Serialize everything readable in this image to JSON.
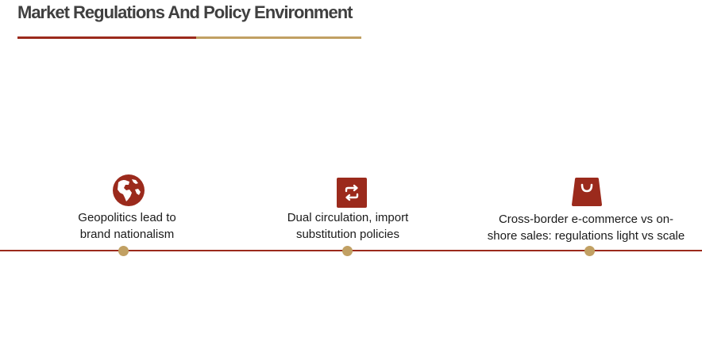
{
  "header": {
    "title": "Market Regulations And Policy Environment"
  },
  "colors": {
    "accent": "#9b2a1c",
    "gold": "#c1a063",
    "title_text": "#404040"
  },
  "timeline": {
    "items": [
      {
        "icon": "globe-icon",
        "line1": "Geopolitics lead to",
        "line2": "brand nationalism"
      },
      {
        "icon": "repeat-arrows-icon",
        "line1": "Dual circulation, import",
        "line2": "substitution policies"
      },
      {
        "icon": "shopping-bag-icon",
        "line1": "Cross-border e-commerce vs on-",
        "line2": "shore sales: regulations light vs scale"
      }
    ]
  }
}
